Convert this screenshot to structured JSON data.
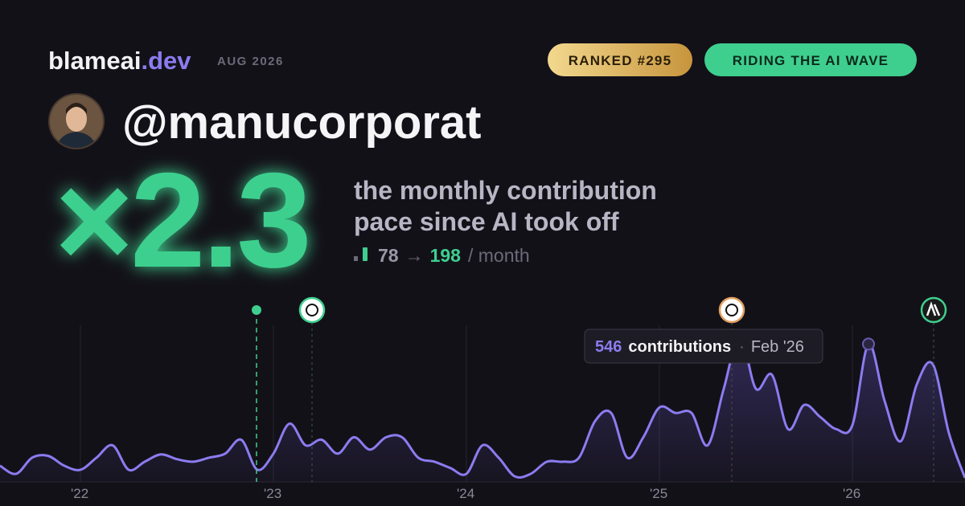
{
  "header": {
    "brand": "blameai",
    "brand_tld": ".dev",
    "date": "AUG 2026",
    "badges": [
      "RANKED #295",
      "RIDING THE AI WAVE"
    ],
    "username": "@manucorporat"
  },
  "stat": {
    "multiplier": "×2.3",
    "description": [
      "the monthly contribution",
      "pace since AI took off"
    ],
    "before": "78",
    "arrow": "→",
    "after": "198",
    "unit": "/ month"
  },
  "chart_data": {
    "type": "area",
    "color": "#8b7cf0",
    "categories": [
      null,
      null,
      null,
      null,
      null,
      "'22",
      null,
      null,
      null,
      null,
      null,
      null,
      null,
      null,
      null,
      null,
      null,
      "'23",
      null,
      null,
      null,
      null,
      null,
      null,
      null,
      null,
      null,
      null,
      null,
      "'24",
      null,
      null,
      null,
      null,
      null,
      null,
      null,
      null,
      null,
      null,
      null,
      "'25",
      null,
      null,
      null,
      null,
      null,
      null,
      null,
      null,
      null,
      null,
      null,
      "'26",
      null,
      null,
      null,
      null,
      null,
      null,
      null
    ],
    "values": [
      64,
      32,
      96,
      103,
      64,
      48,
      96,
      145,
      48,
      80,
      109,
      90,
      80,
      96,
      112,
      167,
      48,
      112,
      231,
      145,
      167,
      112,
      177,
      128,
      177,
      177,
      96,
      80,
      55,
      32,
      145,
      96,
      22,
      32,
      80,
      80,
      96,
      241,
      273,
      96,
      177,
      295,
      273,
      273,
      145,
      369,
      578,
      369,
      424,
      209,
      305,
      257,
      209,
      225,
      546,
      321,
      161,
      386,
      466,
      193,
      16
    ],
    "ylim": [
      0,
      700
    ],
    "grid": true,
    "tooltip": {
      "label": "contributions",
      "date": "Feb '26"
    }
  }
}
